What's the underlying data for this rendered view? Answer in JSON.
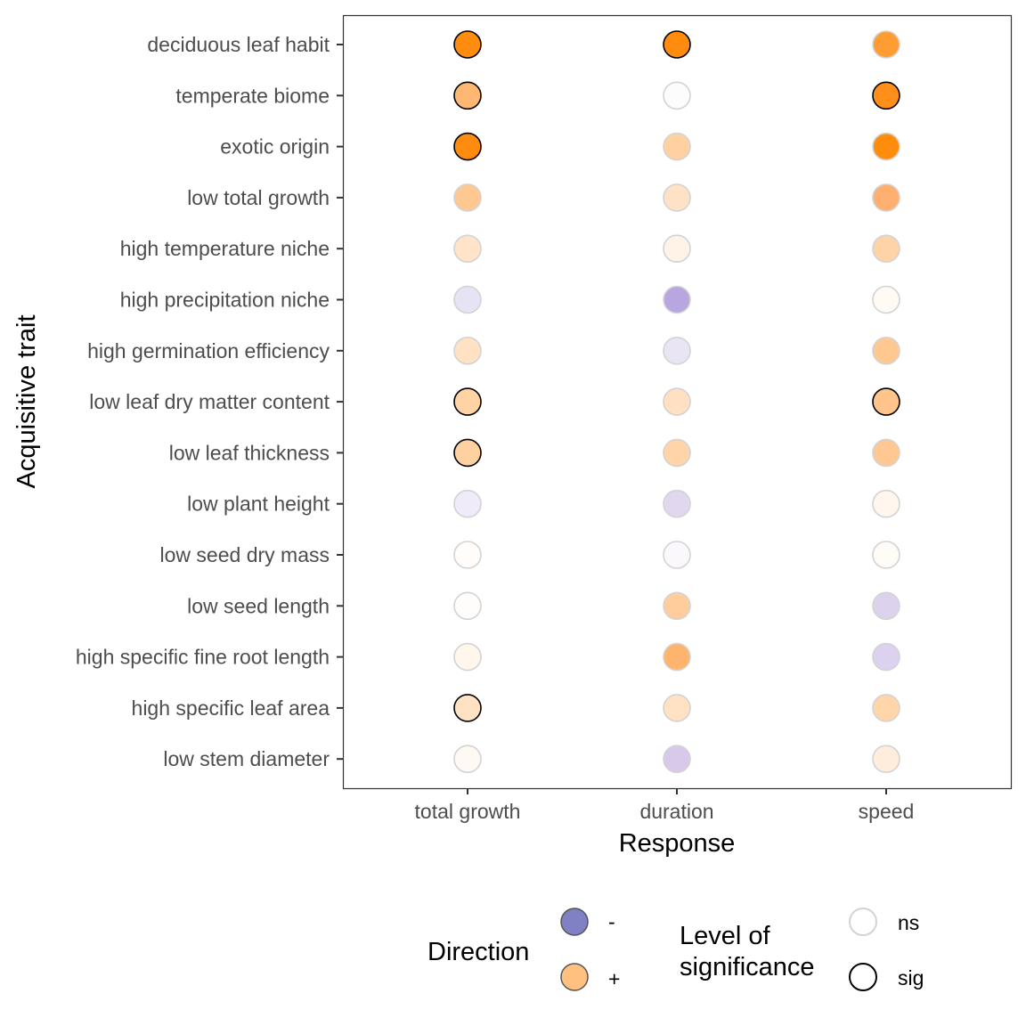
{
  "chart_data": {
    "type": "dot-matrix",
    "xlabel": "Response",
    "ylabel": "Acquisitive trait",
    "x_categories": [
      "total growth",
      "duration",
      "speed"
    ],
    "y_categories": [
      "deciduous leaf habit",
      "temperate biome",
      "exotic origin",
      "low total growth",
      "high temperature niche",
      "high precipitation niche",
      "high germination efficiency",
      "low leaf dry matter content",
      "low leaf thickness",
      "low plant height",
      "low seed dry mass",
      "low seed length",
      "high specific fine root length",
      "high specific leaf area",
      "low stem diameter"
    ],
    "grid": false,
    "legend_position": "bottom",
    "legends": {
      "direction": {
        "title": "Direction",
        "items": [
          {
            "label": "-",
            "color": "#8080c4"
          },
          {
            "label": "+",
            "color": "#ffc080"
          }
        ]
      },
      "significance": {
        "title_line1": "Level of",
        "title_line2": "significance",
        "items": [
          {
            "label": "ns",
            "stroke": "#d3d3d3"
          },
          {
            "label": "sig",
            "stroke": "#000000"
          }
        ]
      }
    },
    "points": [
      {
        "trait": "deciduous leaf habit",
        "response": "total growth",
        "color": "#ff8c0f",
        "significance": "sig"
      },
      {
        "trait": "deciduous leaf habit",
        "response": "duration",
        "color": "#ff8c0f",
        "significance": "sig"
      },
      {
        "trait": "deciduous leaf habit",
        "response": "speed",
        "color": "#ff9d33",
        "significance": "ns"
      },
      {
        "trait": "temperate biome",
        "response": "total growth",
        "color": "#ffb874",
        "significance": "sig"
      },
      {
        "trait": "temperate biome",
        "response": "duration",
        "color": "#fcfcfd",
        "significance": "ns"
      },
      {
        "trait": "temperate biome",
        "response": "speed",
        "color": "#ff8f1a",
        "significance": "sig"
      },
      {
        "trait": "exotic origin",
        "response": "total growth",
        "color": "#ff8c0f",
        "significance": "sig"
      },
      {
        "trait": "exotic origin",
        "response": "duration",
        "color": "#ffd0a0",
        "significance": "ns"
      },
      {
        "trait": "exotic origin",
        "response": "speed",
        "color": "#ff8c0a",
        "significance": "ns"
      },
      {
        "trait": "low total growth",
        "response": "total growth",
        "color": "#ffc890",
        "significance": "ns"
      },
      {
        "trait": "low total growth",
        "response": "duration",
        "color": "#ffe2c6",
        "significance": "ns"
      },
      {
        "trait": "low total growth",
        "response": "speed",
        "color": "#ffb070",
        "significance": "ns"
      },
      {
        "trait": "high temperature niche",
        "response": "total growth",
        "color": "#ffe4c9",
        "significance": "ns"
      },
      {
        "trait": "high temperature niche",
        "response": "duration",
        "color": "#fff3e8",
        "significance": "ns"
      },
      {
        "trait": "high temperature niche",
        "response": "speed",
        "color": "#ffd3a8",
        "significance": "ns"
      },
      {
        "trait": "high precipitation niche",
        "response": "total growth",
        "color": "#e6e3f5",
        "significance": "ns"
      },
      {
        "trait": "high precipitation niche",
        "response": "duration",
        "color": "#b8a6e0",
        "significance": "ns"
      },
      {
        "trait": "high precipitation niche",
        "response": "speed",
        "color": "#fffaf4",
        "significance": "ns"
      },
      {
        "trait": "high germination efficiency",
        "response": "total growth",
        "color": "#ffe1c4",
        "significance": "ns"
      },
      {
        "trait": "high germination efficiency",
        "response": "duration",
        "color": "#eae5f5",
        "significance": "ns"
      },
      {
        "trait": "high germination efficiency",
        "response": "speed",
        "color": "#ffc890",
        "significance": "ns"
      },
      {
        "trait": "low leaf dry matter content",
        "response": "total growth",
        "color": "#ffd3a4",
        "significance": "sig"
      },
      {
        "trait": "low leaf dry matter content",
        "response": "duration",
        "color": "#ffe0c2",
        "significance": "ns"
      },
      {
        "trait": "low leaf dry matter content",
        "response": "speed",
        "color": "#ffc48a",
        "significance": "sig"
      },
      {
        "trait": "low leaf thickness",
        "response": "total growth",
        "color": "#ffd0a0",
        "significance": "sig"
      },
      {
        "trait": "low leaf thickness",
        "response": "duration",
        "color": "#ffd4a8",
        "significance": "ns"
      },
      {
        "trait": "low leaf thickness",
        "response": "speed",
        "color": "#ffc892",
        "significance": "ns"
      },
      {
        "trait": "low plant height",
        "response": "total growth",
        "color": "#efebf8",
        "significance": "ns"
      },
      {
        "trait": "low plant height",
        "response": "duration",
        "color": "#e1d8f0",
        "significance": "ns"
      },
      {
        "trait": "low plant height",
        "response": "speed",
        "color": "#fff6ee",
        "significance": "ns"
      },
      {
        "trait": "low seed dry mass",
        "response": "total growth",
        "color": "#fffcf9",
        "significance": "ns"
      },
      {
        "trait": "low seed dry mass",
        "response": "duration",
        "color": "#faf8fd",
        "significance": "ns"
      },
      {
        "trait": "low seed dry mass",
        "response": "speed",
        "color": "#fffbf7",
        "significance": "ns"
      },
      {
        "trait": "low seed length",
        "response": "total growth",
        "color": "#fffdfc",
        "significance": "ns"
      },
      {
        "trait": "low seed length",
        "response": "duration",
        "color": "#ffcd9c",
        "significance": "ns"
      },
      {
        "trait": "low seed length",
        "response": "speed",
        "color": "#dcd2ee",
        "significance": "ns"
      },
      {
        "trait": "high specific fine root length",
        "response": "total growth",
        "color": "#fff6ec",
        "significance": "ns"
      },
      {
        "trait": "high specific fine root length",
        "response": "duration",
        "color": "#ffb46e",
        "significance": "ns"
      },
      {
        "trait": "high specific fine root length",
        "response": "speed",
        "color": "#dcd1ee",
        "significance": "ns"
      },
      {
        "trait": "high specific leaf area",
        "response": "total growth",
        "color": "#ffe2c4",
        "significance": "sig"
      },
      {
        "trait": "high specific leaf area",
        "response": "duration",
        "color": "#ffe1c4",
        "significance": "ns"
      },
      {
        "trait": "high specific leaf area",
        "response": "speed",
        "color": "#ffd5aa",
        "significance": "ns"
      },
      {
        "trait": "low stem diameter",
        "response": "total growth",
        "color": "#fff9f3",
        "significance": "ns"
      },
      {
        "trait": "low stem diameter",
        "response": "duration",
        "color": "#d8c9eb",
        "significance": "ns"
      },
      {
        "trait": "low stem diameter",
        "response": "speed",
        "color": "#ffeddc",
        "significance": "ns"
      }
    ]
  }
}
